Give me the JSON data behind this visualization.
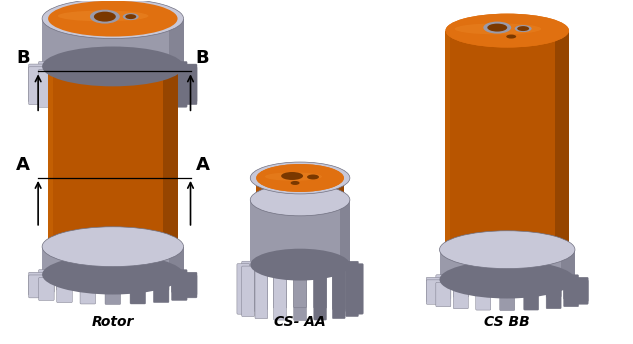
{
  "labels": [
    "Rotor",
    "CS- AA",
    "CS BB"
  ],
  "orange_main": "#B85500",
  "orange_light": "#D4700A",
  "orange_lighter": "#E08520",
  "orange_top": "#E07010",
  "orange_top_light": "#F09030",
  "orange_shadow": "#7A3800",
  "gray_main": "#9A9AAA",
  "gray_light": "#C8C8D8",
  "gray_lighter": "#DCDCE8",
  "gray_dark": "#707080",
  "gray_darker": "#505060",
  "bg_color": "#FFFFFF",
  "arrow_color": "#000000",
  "figsize": [
    6.33,
    3.44
  ],
  "dpi": 100
}
